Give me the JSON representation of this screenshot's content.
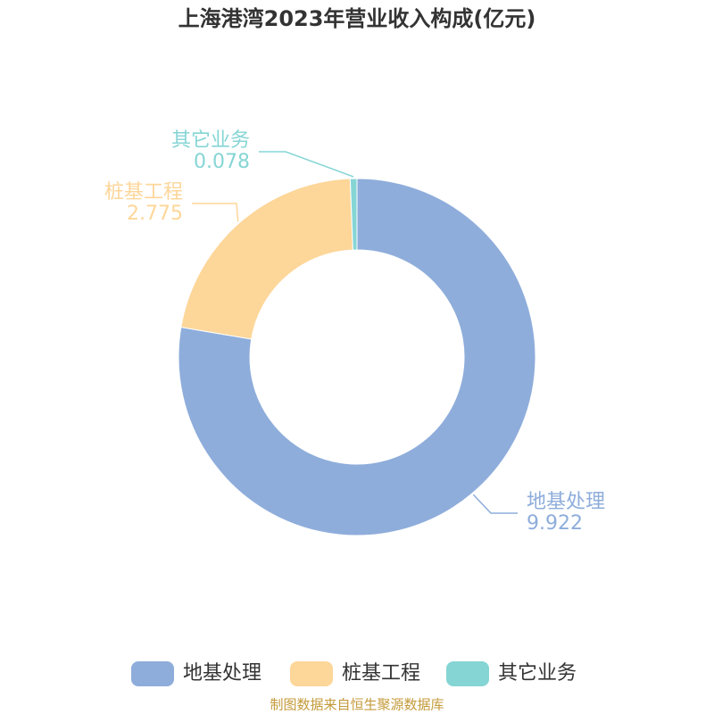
{
  "chart_data": {
    "type": "donut",
    "title": "上海港湾2023年营业收入构成(亿元)",
    "categories": [
      "地基处理",
      "桩基工程",
      "其它业务"
    ],
    "values": [
      9.922,
      2.775,
      0.078
    ],
    "colors": [
      "#8eaddb",
      "#fdd699",
      "#86d5d5"
    ],
    "legend": "bottom",
    "source": "制图数据来自恒生聚源数据库"
  }
}
